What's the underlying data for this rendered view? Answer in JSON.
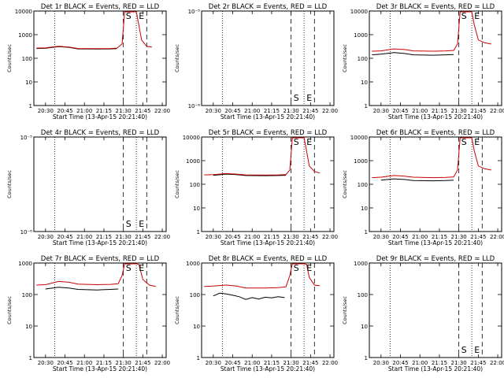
{
  "chart_data": [
    {
      "type": "line",
      "title": "Det 1r BLACK = Events, RED = LLD",
      "ylabel": "Counts/sec",
      "xlabel": "Start Time (13-Apr-15 20:21:40)",
      "x_ticks": [
        "20:30",
        "20:45",
        "21:00",
        "21:15",
        "21:30",
        "21:45",
        "22:00"
      ],
      "y_scale": "log",
      "ylim": [
        1,
        10000
      ],
      "y_ticks": [
        "1",
        "10",
        "100",
        "1000",
        "10000"
      ],
      "markers": [
        "S",
        "E"
      ],
      "series": [
        {
          "color": "#000000",
          "points": [
            [
              "20:23",
              260
            ],
            [
              "20:30",
              265
            ],
            [
              "20:40",
              310
            ],
            [
              "20:48",
              290
            ],
            [
              "20:55",
              250
            ],
            [
              "21:10",
              245
            ],
            [
              "21:20",
              250
            ],
            [
              "21:25",
              255
            ]
          ]
        },
        {
          "color": "#cc0000",
          "points": [
            [
              "20:23",
              270
            ],
            [
              "20:30",
              275
            ],
            [
              "20:40",
              320
            ],
            [
              "20:48",
              300
            ],
            [
              "20:55",
              260
            ],
            [
              "21:10",
              255
            ],
            [
              "21:20",
              260
            ],
            [
              "21:25",
              270
            ],
            [
              "21:29",
              400
            ],
            [
              "21:31",
              11000
            ],
            [
              "21:36",
              11000
            ],
            [
              "21:40",
              11000
            ],
            [
              "21:42",
              2500
            ],
            [
              "21:44",
              600
            ],
            [
              "21:48",
              320
            ],
            [
              "21:52",
              300
            ]
          ]
        }
      ]
    },
    {
      "type": "line",
      "title": "Det 2r BLACK = Events, RED = LLD",
      "ylabel": "Counts/sec",
      "xlabel": "Start Time (13-Apr-15 20:21:40)",
      "x_ticks": [
        "20:30",
        "20:45",
        "21:00",
        "21:15",
        "21:30",
        "21:45",
        "22:00"
      ],
      "y_scale": "log",
      "ylim": [
        1e-06,
        1e-05
      ],
      "y_ticks": [
        "10⁻⁶",
        "10⁻⁵"
      ],
      "markers": [
        "S",
        "E"
      ],
      "series": []
    },
    {
      "type": "line",
      "title": "Det 3r BLACK = Events, RED = LLD",
      "ylabel": "Counts/sec",
      "xlabel": "Start Time (13-Apr-15 20:21:40)",
      "x_ticks": [
        "20:30",
        "20:45",
        "21:00",
        "21:15",
        "21:30",
        "21:45",
        "22:00"
      ],
      "y_scale": "log",
      "ylim": [
        1,
        10000
      ],
      "y_ticks": [
        "1",
        "10",
        "100",
        "1000",
        "10000"
      ],
      "markers": [
        "S",
        "E"
      ],
      "series": [
        {
          "color": "#000000",
          "points": [
            [
              "20:23",
              140
            ],
            [
              "20:30",
              150
            ],
            [
              "20:40",
              175
            ],
            [
              "20:48",
              160
            ],
            [
              "20:55",
              140
            ],
            [
              "21:10",
              135
            ],
            [
              "21:20",
              140
            ],
            [
              "21:26",
              145
            ]
          ]
        },
        {
          "color": "#cc0000",
          "points": [
            [
              "20:23",
              200
            ],
            [
              "20:30",
              205
            ],
            [
              "20:40",
              250
            ],
            [
              "20:48",
              235
            ],
            [
              "20:55",
              205
            ],
            [
              "21:10",
              200
            ],
            [
              "21:20",
              205
            ],
            [
              "21:26",
              215
            ],
            [
              "21:29",
              400
            ],
            [
              "21:31",
              11000
            ],
            [
              "21:36",
              11000
            ],
            [
              "21:40",
              11000
            ],
            [
              "21:42",
              2500
            ],
            [
              "21:45",
              600
            ],
            [
              "21:50",
              450
            ],
            [
              "21:55",
              400
            ]
          ]
        }
      ]
    },
    {
      "type": "line",
      "title": "Det 4r BLACK = Events, RED = LLD",
      "ylabel": "Counts/sec",
      "xlabel": "Start Time (13-Apr-15 20:21:40)",
      "x_ticks": [
        "20:30",
        "20:45",
        "21:00",
        "21:15",
        "21:30",
        "21:45",
        "22:00"
      ],
      "y_scale": "log",
      "ylim": [
        1e-06,
        1e-05
      ],
      "y_ticks": [
        "10⁻⁶",
        "10⁻⁵"
      ],
      "markers": [
        "S",
        "E"
      ],
      "series": []
    },
    {
      "type": "line",
      "title": "Det 5r BLACK = Events, RED = LLD",
      "ylabel": "Counts/sec",
      "xlabel": "Start Time (13-Apr-15 20:21:40)",
      "x_ticks": [
        "20:30",
        "20:45",
        "21:00",
        "21:15",
        "21:30",
        "21:45",
        "22:00"
      ],
      "y_scale": "log",
      "ylim": [
        1,
        10000
      ],
      "y_ticks": [
        "1",
        "10",
        "100",
        "1000",
        "10000"
      ],
      "markers": [
        "S",
        "E"
      ],
      "series": [
        {
          "color": "#000000",
          "points": [
            [
              "20:30",
              240
            ],
            [
              "20:40",
              270
            ],
            [
              "20:48",
              255
            ],
            [
              "20:55",
              235
            ],
            [
              "21:10",
              230
            ],
            [
              "21:20",
              235
            ],
            [
              "21:26",
              240
            ]
          ]
        },
        {
          "color": "#cc0000",
          "points": [
            [
              "20:23",
              250
            ],
            [
              "20:30",
              255
            ],
            [
              "20:40",
              285
            ],
            [
              "20:48",
              270
            ],
            [
              "20:55",
              250
            ],
            [
              "21:10",
              245
            ],
            [
              "21:20",
              250
            ],
            [
              "21:26",
              260
            ],
            [
              "21:29",
              400
            ],
            [
              "21:31",
              11000
            ],
            [
              "21:36",
              11000
            ],
            [
              "21:40",
              11000
            ],
            [
              "21:42",
              2500
            ],
            [
              "21:44",
              600
            ],
            [
              "21:48",
              350
            ],
            [
              "21:52",
              300
            ]
          ]
        }
      ]
    },
    {
      "type": "line",
      "title": "Det 6r BLACK = Events, RED = LLD",
      "ylabel": "Counts/sec",
      "xlabel": "Start Time (13-Apr-15 20:21:40)",
      "x_ticks": [
        "20:30",
        "20:45",
        "21:00",
        "21:15",
        "21:30",
        "21:45",
        "22:00"
      ],
      "y_scale": "log",
      "ylim": [
        1,
        10000
      ],
      "y_ticks": [
        "1",
        "10",
        "100",
        "1000",
        "10000"
      ],
      "markers": [
        "S",
        "E"
      ],
      "series": [
        {
          "color": "#000000",
          "points": [
            [
              "20:30",
              150
            ],
            [
              "20:40",
              170
            ],
            [
              "20:48",
              160
            ],
            [
              "20:55",
              145
            ],
            [
              "21:10",
              140
            ],
            [
              "21:20",
              145
            ],
            [
              "21:26",
              150
            ]
          ]
        },
        {
          "color": "#cc0000",
          "points": [
            [
              "20:23",
              190
            ],
            [
              "20:30",
              200
            ],
            [
              "20:40",
              235
            ],
            [
              "20:48",
              220
            ],
            [
              "20:55",
              200
            ],
            [
              "21:10",
              190
            ],
            [
              "21:20",
              195
            ],
            [
              "21:26",
              205
            ],
            [
              "21:29",
              400
            ],
            [
              "21:31",
              11000
            ],
            [
              "21:36",
              11000
            ],
            [
              "21:40",
              11000
            ],
            [
              "21:42",
              2500
            ],
            [
              "21:45",
              600
            ],
            [
              "21:50",
              450
            ],
            [
              "21:55",
              400
            ]
          ]
        }
      ]
    },
    {
      "type": "line",
      "title": "Det 7r BLACK = Events, RED = LLD",
      "ylabel": "Counts/sec",
      "xlabel": "Start Time (13-Apr-15 20:21:40)",
      "x_ticks": [
        "20:30",
        "20:45",
        "21:00",
        "21:15",
        "21:30",
        "21:45",
        "22:00"
      ],
      "y_scale": "log",
      "ylim": [
        1,
        1000
      ],
      "y_ticks": [
        "1",
        "10",
        "100",
        "1000"
      ],
      "markers": [
        "S",
        "E"
      ],
      "series": [
        {
          "color": "#000000",
          "points": [
            [
              "20:30",
              150
            ],
            [
              "20:40",
              170
            ],
            [
              "20:48",
              160
            ],
            [
              "20:55",
              145
            ],
            [
              "21:10",
              140
            ],
            [
              "21:20",
              145
            ],
            [
              "21:26",
              150
            ]
          ]
        },
        {
          "color": "#cc0000",
          "points": [
            [
              "20:23",
              200
            ],
            [
              "20:30",
              205
            ],
            [
              "20:40",
              260
            ],
            [
              "20:48",
              245
            ],
            [
              "20:55",
              215
            ],
            [
              "21:10",
              205
            ],
            [
              "21:20",
              210
            ],
            [
              "21:26",
              220
            ],
            [
              "21:29",
              400
            ],
            [
              "21:31",
              1100
            ],
            [
              "21:36",
              1100
            ],
            [
              "21:40",
              1100
            ],
            [
              "21:42",
              900
            ],
            [
              "21:45",
              300
            ],
            [
              "21:50",
              200
            ],
            [
              "21:55",
              180
            ]
          ]
        }
      ]
    },
    {
      "type": "line",
      "title": "Det 8r BLACK = Events, RED = LLD",
      "ylabel": "Counts/sec",
      "xlabel": "Start Time (13-Apr-15 20:21:40)",
      "x_ticks": [
        "20:30",
        "20:45",
        "21:00",
        "21:15",
        "21:30",
        "21:45",
        "22:00"
      ],
      "y_scale": "log",
      "ylim": [
        1,
        1000
      ],
      "y_ticks": [
        "1",
        "10",
        "100",
        "1000"
      ],
      "markers": [
        "S",
        "E"
      ],
      "series": [
        {
          "color": "#000000",
          "points": [
            [
              "20:30",
              90
            ],
            [
              "20:35",
              110
            ],
            [
              "20:40",
              105
            ],
            [
              "20:45",
              95
            ],
            [
              "20:50",
              85
            ],
            [
              "20:55",
              70
            ],
            [
              "21:00",
              80
            ],
            [
              "21:05",
              72
            ],
            [
              "21:10",
              82
            ],
            [
              "21:15",
              78
            ],
            [
              "21:20",
              85
            ],
            [
              "21:25",
              80
            ]
          ]
        },
        {
          "color": "#cc0000",
          "points": [
            [
              "20:23",
              180
            ],
            [
              "20:30",
              185
            ],
            [
              "20:40",
              200
            ],
            [
              "20:48",
              185
            ],
            [
              "20:55",
              160
            ],
            [
              "21:10",
              160
            ],
            [
              "21:20",
              165
            ],
            [
              "21:26",
              175
            ],
            [
              "21:29",
              400
            ],
            [
              "21:31",
              1100
            ],
            [
              "21:36",
              1100
            ],
            [
              "21:40",
              1100
            ],
            [
              "21:42",
              900
            ],
            [
              "21:44",
              350
            ],
            [
              "21:48",
              200
            ],
            [
              "21:52",
              190
            ]
          ]
        }
      ]
    },
    {
      "type": "line",
      "title": "Det 9r BLACK = Events, RED = LLD",
      "ylabel": "Counts/sec",
      "xlabel": "Start Time (13-Apr-15 20:21:40)",
      "x_ticks": [
        "20:30",
        "20:45",
        "21:00",
        "21:15",
        "21:30",
        "21:45",
        "22:00"
      ],
      "y_scale": "log",
      "ylim": [
        1,
        1000
      ],
      "y_ticks": [
        "1",
        "10",
        "100",
        "1000"
      ],
      "markers": [
        "S",
        "E"
      ],
      "series": []
    }
  ]
}
